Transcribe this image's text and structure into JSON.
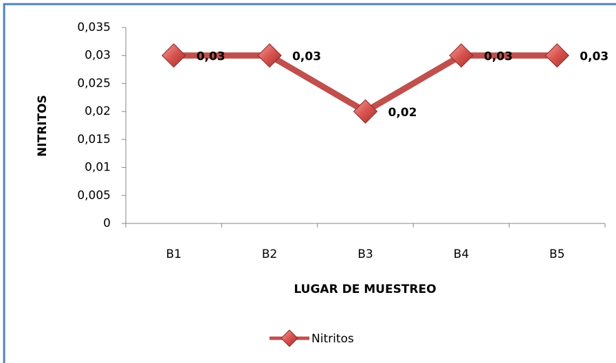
{
  "chart_data": {
    "type": "line",
    "xlabel": "LUGAR DE MUESTREO",
    "ylabel": "NITRITOS",
    "categories": [
      "B1",
      "B2",
      "B3",
      "B4",
      "B5"
    ],
    "series": [
      {
        "name": "Nitritos",
        "color": "#c0504d",
        "values": [
          0.03,
          0.03,
          0.02,
          0.03,
          0.03
        ],
        "value_labels": [
          "0,03",
          "0,03",
          "0,02",
          "0,03",
          "0,03"
        ]
      }
    ],
    "ylim": [
      0,
      0.035
    ],
    "yticks": [
      0,
      {
        "value": 0.005,
        "label": "0,005"
      },
      {
        "value": 0.01,
        "label": "0,01"
      },
      {
        "value": 0.015,
        "label": "0,015"
      },
      {
        "value": 0.02,
        "label": "0,02"
      },
      {
        "value": 0.025,
        "label": "0,025"
      },
      {
        "value": 0.03,
        "label": "0,03"
      },
      {
        "value": 0.035,
        "label": "0,035"
      }
    ],
    "grid": false,
    "legend": "bottom"
  }
}
